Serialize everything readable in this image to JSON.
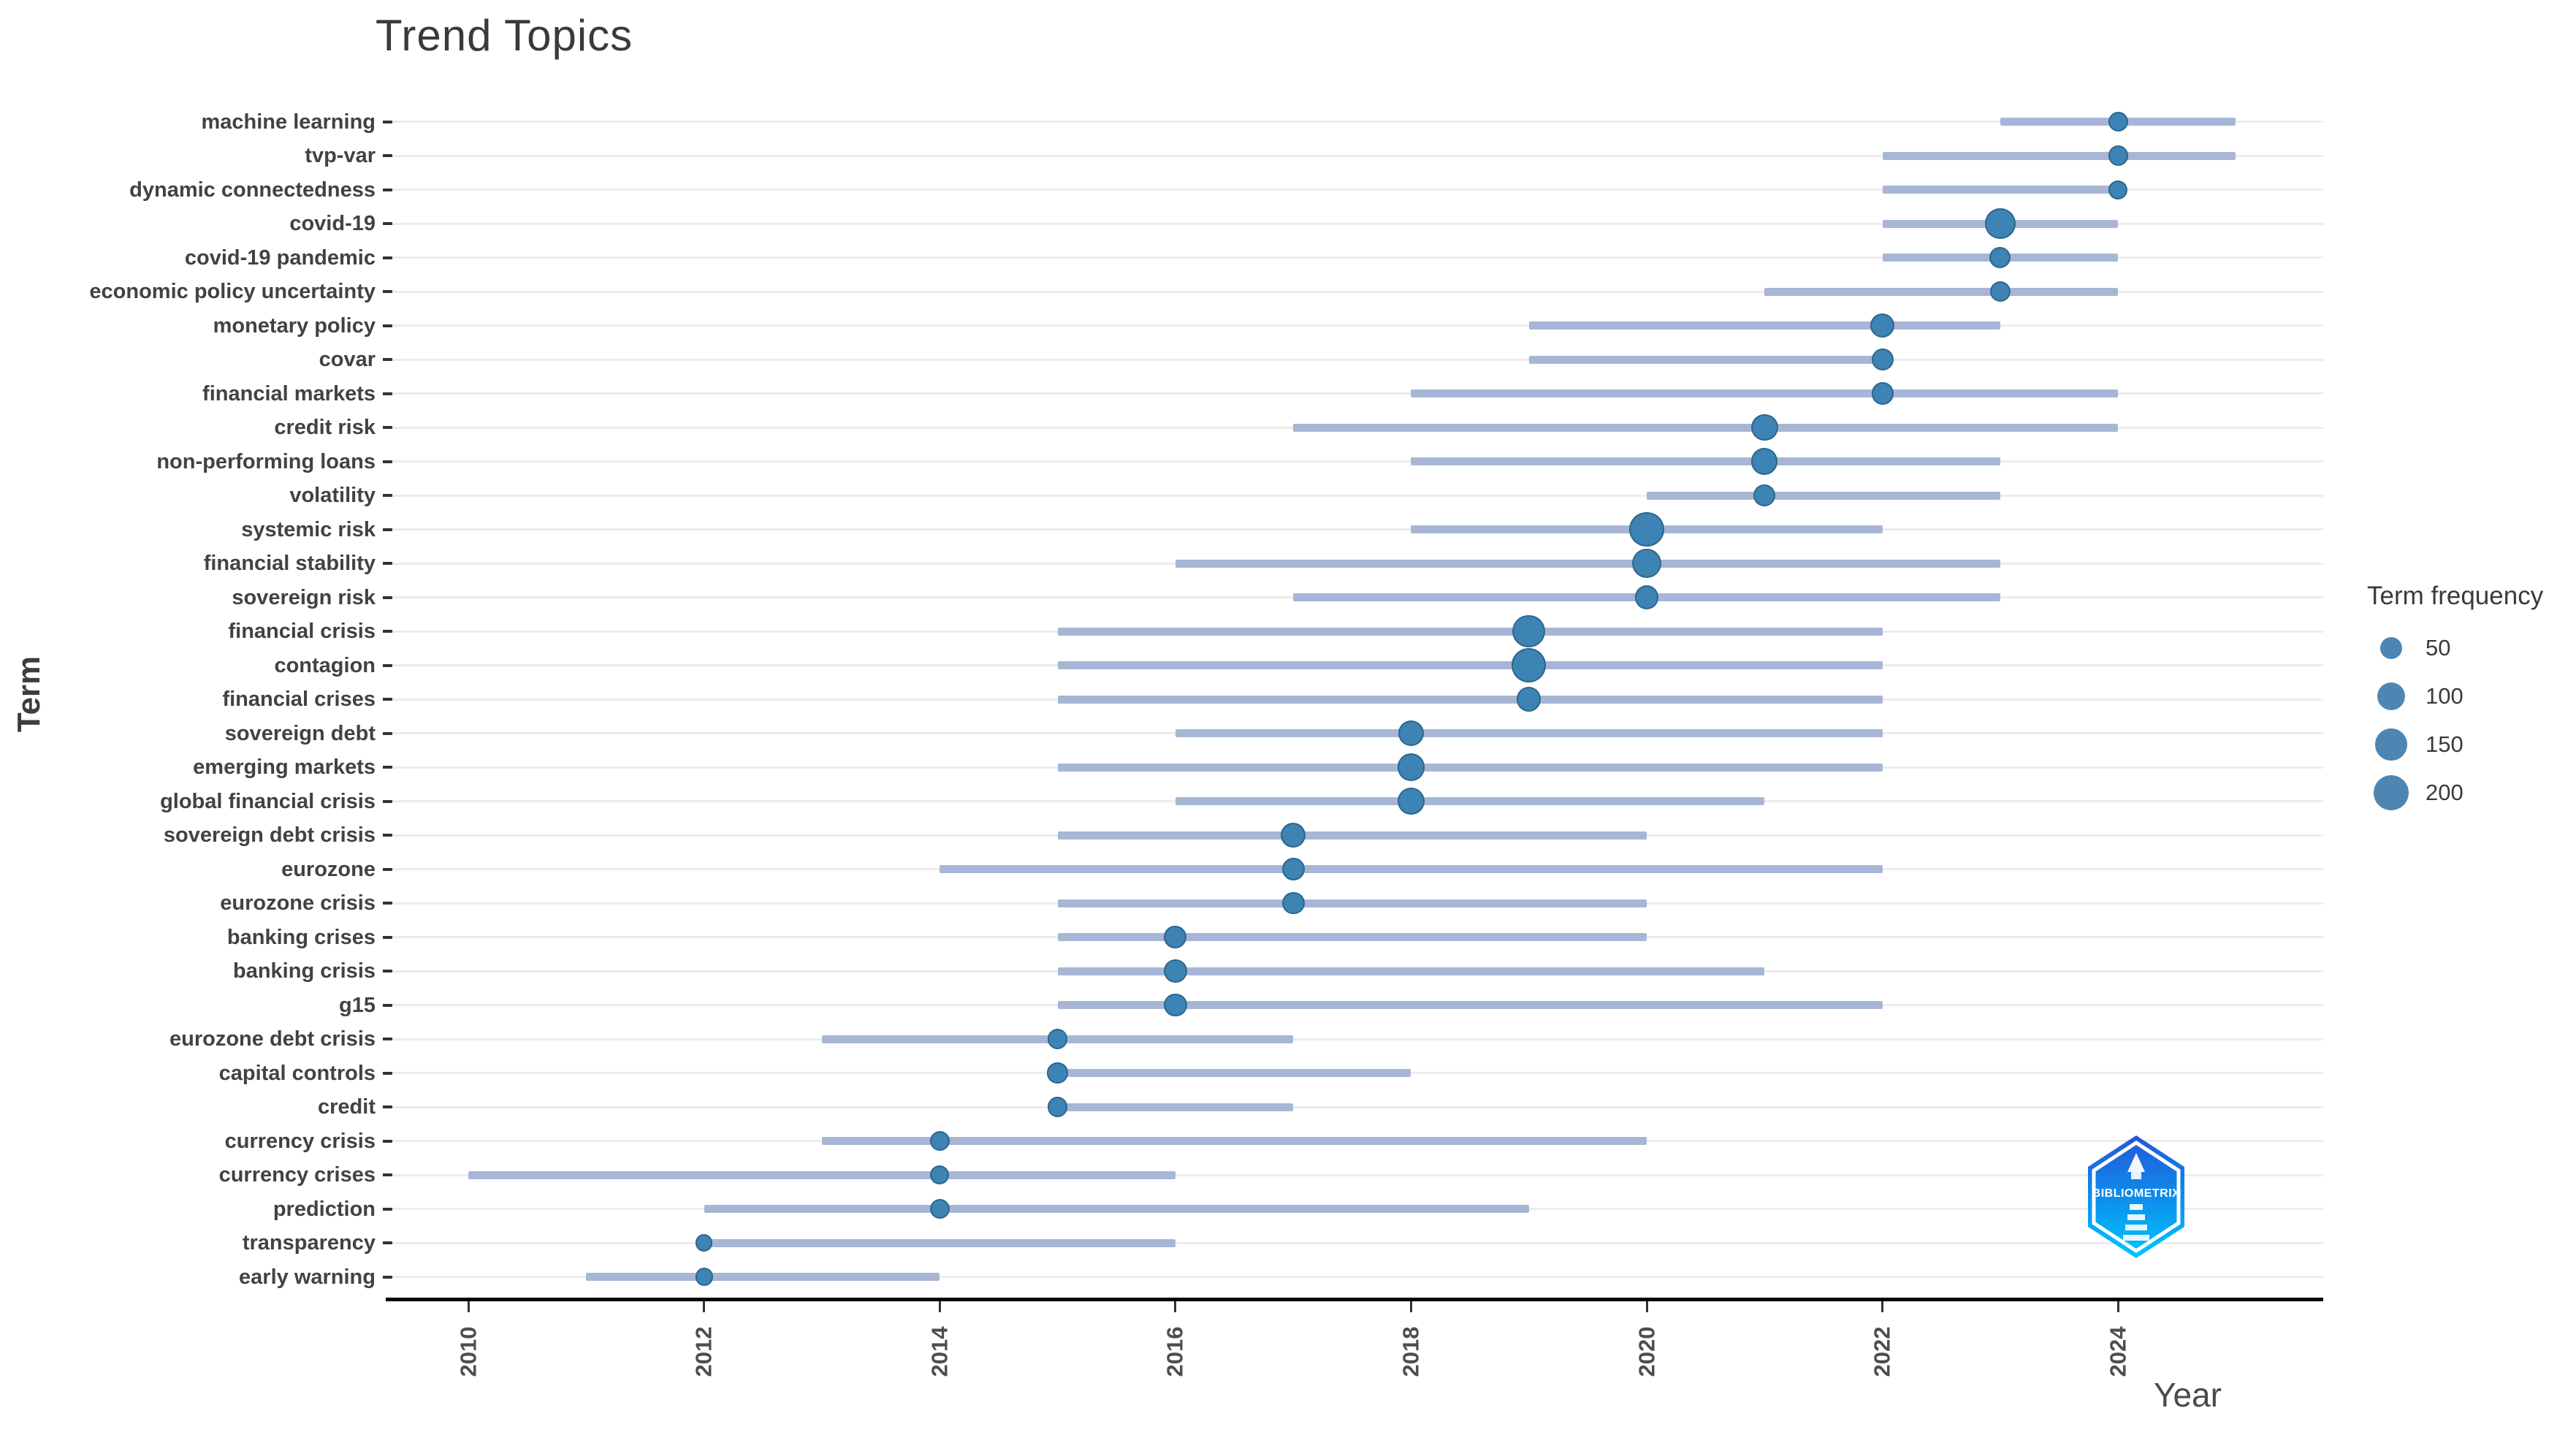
{
  "title": "Trend Topics",
  "axes": {
    "x_label": "Year",
    "y_label": "Term",
    "x_ticks": [
      "2010",
      "2012",
      "2014",
      "2016",
      "2018",
      "2020",
      "2022",
      "2024"
    ]
  },
  "legend": {
    "title": "Term frequency",
    "items": [
      {
        "label": "50",
        "value": 50
      },
      {
        "label": "100",
        "value": 100
      },
      {
        "label": "150",
        "value": 150
      },
      {
        "label": "200",
        "value": 200
      }
    ]
  },
  "logo": {
    "label": "BIBLIOMETRIX"
  },
  "colors": {
    "dot": "#3d83b3",
    "dot_border": "#2e6f9f",
    "range_line": "#a8b6d5",
    "gridline": "#ececec",
    "axis_line": "#000000",
    "text": "#424242",
    "logo_top": "#2457d8",
    "logo_bottom": "#00c8ff"
  },
  "chart_data": {
    "type": "scatter",
    "title": "Trend Topics",
    "xlabel": "Year",
    "ylabel": "Term",
    "x_range": [
      2009.3,
      2025.8
    ],
    "x_ticks": [
      2010,
      2012,
      2014,
      2016,
      2018,
      2020,
      2022,
      2024
    ],
    "grid": "horizontal-only",
    "legend_position": "right",
    "size_legend": {
      "title": "Term frequency",
      "values": [
        50,
        100,
        150,
        200
      ]
    },
    "series_note": "Each term has a horizontal line from year_q1 to year_q3 and a dot at year_med sized by freq (term frequency, estimated).",
    "terms": [
      {
        "term": "machine learning",
        "year_q1": 2023,
        "year_med": 2024,
        "year_q3": 2025,
        "freq": 30
      },
      {
        "term": "tvp-var",
        "year_q1": 2022,
        "year_med": 2024,
        "year_q3": 2025,
        "freq": 30
      },
      {
        "term": "dynamic connectedness",
        "year_q1": 2022,
        "year_med": 2024,
        "year_q3": 2024,
        "freq": 25
      },
      {
        "term": "covid-19",
        "year_q1": 2022,
        "year_med": 2023,
        "year_q3": 2024,
        "freq": 130
      },
      {
        "term": "covid-19 pandemic",
        "year_q1": 2022,
        "year_med": 2023,
        "year_q3": 2024,
        "freq": 40
      },
      {
        "term": "economic policy uncertainty",
        "year_q1": 2021,
        "year_med": 2023,
        "year_q3": 2024,
        "freq": 35
      },
      {
        "term": "monetary policy",
        "year_q1": 2019,
        "year_med": 2022,
        "year_q3": 2023,
        "freq": 65
      },
      {
        "term": "covar",
        "year_q1": 2019,
        "year_med": 2022,
        "year_q3": 2022,
        "freq": 45
      },
      {
        "term": "financial markets",
        "year_q1": 2018,
        "year_med": 2022,
        "year_q3": 2024,
        "freq": 45
      },
      {
        "term": "credit risk",
        "year_q1": 2017,
        "year_med": 2021,
        "year_q3": 2024,
        "freq": 90
      },
      {
        "term": "non-performing loans",
        "year_q1": 2018,
        "year_med": 2021,
        "year_q3": 2023,
        "freq": 85
      },
      {
        "term": "volatility",
        "year_q1": 2020,
        "year_med": 2021,
        "year_q3": 2023,
        "freq": 45
      },
      {
        "term": "systemic risk",
        "year_q1": 2018,
        "year_med": 2020,
        "year_q3": 2022,
        "freq": 195
      },
      {
        "term": "financial stability",
        "year_q1": 2016,
        "year_med": 2020,
        "year_q3": 2023,
        "freq": 120
      },
      {
        "term": "sovereign risk",
        "year_q1": 2017,
        "year_med": 2020,
        "year_q3": 2023,
        "freq": 60
      },
      {
        "term": "financial crisis",
        "year_q1": 2015,
        "year_med": 2019,
        "year_q3": 2022,
        "freq": 165
      },
      {
        "term": "contagion",
        "year_q1": 2015,
        "year_med": 2019,
        "year_q3": 2022,
        "freq": 185
      },
      {
        "term": "financial crises",
        "year_q1": 2015,
        "year_med": 2019,
        "year_q3": 2022,
        "freq": 65
      },
      {
        "term": "sovereign debt",
        "year_q1": 2016,
        "year_med": 2018,
        "year_q3": 2022,
        "freq": 80
      },
      {
        "term": "emerging markets",
        "year_q1": 2015,
        "year_med": 2018,
        "year_q3": 2022,
        "freq": 95
      },
      {
        "term": "global financial crisis",
        "year_q1": 2016,
        "year_med": 2018,
        "year_q3": 2021,
        "freq": 90
      },
      {
        "term": "sovereign debt crisis",
        "year_q1": 2015,
        "year_med": 2017,
        "year_q3": 2020,
        "freq": 70
      },
      {
        "term": "eurozone",
        "year_q1": 2014,
        "year_med": 2017,
        "year_q3": 2022,
        "freq": 50
      },
      {
        "term": "eurozone crisis",
        "year_q1": 2015,
        "year_med": 2017,
        "year_q3": 2020,
        "freq": 50
      },
      {
        "term": "banking crises",
        "year_q1": 2015,
        "year_med": 2016,
        "year_q3": 2020,
        "freq": 50
      },
      {
        "term": "banking crisis",
        "year_q1": 2015,
        "year_med": 2016,
        "year_q3": 2021,
        "freq": 55
      },
      {
        "term": "g15",
        "year_q1": 2015,
        "year_med": 2016,
        "year_q3": 2022,
        "freq": 55
      },
      {
        "term": "eurozone debt crisis",
        "year_q1": 2013,
        "year_med": 2015,
        "year_q3": 2017,
        "freq": 30
      },
      {
        "term": "capital controls",
        "year_q1": 2015,
        "year_med": 2015,
        "year_q3": 2018,
        "freq": 35
      },
      {
        "term": "credit",
        "year_q1": 2015,
        "year_med": 2015,
        "year_q3": 2017,
        "freq": 30
      },
      {
        "term": "currency crisis",
        "year_q1": 2013,
        "year_med": 2014,
        "year_q3": 2020,
        "freq": 30
      },
      {
        "term": "currency crises",
        "year_q1": 2010,
        "year_med": 2014,
        "year_q3": 2016,
        "freq": 25
      },
      {
        "term": "prediction",
        "year_q1": 2012,
        "year_med": 2014,
        "year_q3": 2019,
        "freq": 30
      },
      {
        "term": "transparency",
        "year_q1": 2012,
        "year_med": 2012,
        "year_q3": 2016,
        "freq": 15
      },
      {
        "term": "early warning",
        "year_q1": 2011,
        "year_med": 2012,
        "year_q3": 2014,
        "freq": 18
      }
    ]
  }
}
